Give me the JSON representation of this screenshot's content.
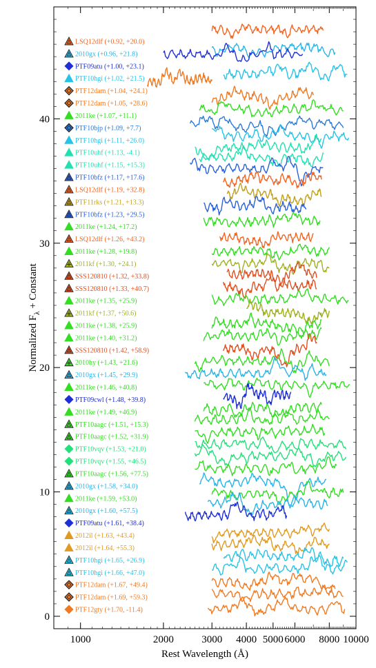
{
  "chart_data": {
    "type": "line",
    "title": "",
    "xlabel": "Rest Wavelength (Å)",
    "ylabel_main": "Normalized F",
    "ylabel_sub": "λ",
    "ylabel_rest": " + Constant",
    "xscale": "log",
    "xlim": [
      800,
      10000
    ],
    "ylim": [
      -1,
      49
    ],
    "x_ticks": [
      {
        "value": 1000,
        "label": "1000"
      },
      {
        "value": 2000,
        "label": "2000"
      },
      {
        "value": 3000,
        "label": "3000"
      },
      {
        "value": 4000,
        "label": "4000"
      },
      {
        "value": 5000,
        "label": "5000"
      },
      {
        "value": 6000,
        "label": "6000"
      },
      {
        "value": 8000,
        "label": "8000"
      },
      {
        "value": 10000,
        "label": "10000"
      }
    ],
    "y_ticks": [
      {
        "value": 0,
        "label": "0"
      },
      {
        "value": 10,
        "label": "10"
      },
      {
        "value": 20,
        "label": "20"
      },
      {
        "value": 30,
        "label": "30"
      },
      {
        "value": 40,
        "label": "40"
      }
    ],
    "series": [
      {
        "name": "LSQ12dlf (+0.92, +20.0)",
        "color": "#f26522",
        "marker": "triangle-dark",
        "offset": 47.2,
        "wmin": 3000,
        "wmax": 7600
      },
      {
        "name": "2010gx (+0.96, +21.8)",
        "color": "#27b4e6",
        "marker": "triangle-dark",
        "offset": 45.8,
        "wmin": 3000,
        "wmax": 8400
      },
      {
        "name": "PTF09atu (+1.00, +23.1)",
        "color": "#1f2fd6",
        "marker": "diamond",
        "offset": 45.2,
        "wmin": 2000,
        "wmax": 6400
      },
      {
        "name": "PTF10hgi (+1.02, +21.5)",
        "color": "#27c3e6",
        "marker": "triangle",
        "offset": 43.6,
        "wmin": 3300,
        "wmax": 9300
      },
      {
        "name": "PTF12dam (+1.04, +24.1)",
        "color": "#f07a22",
        "marker": "diamond-dark",
        "offset": 43.0,
        "wmin": 1750,
        "wmax": 3000
      },
      {
        "name": "PTF12dam (+1.05, +28.6)",
        "color": "#f07a22",
        "marker": "diamond-dark",
        "offset": 41.8,
        "wmin": 3000,
        "wmax": 7000
      },
      {
        "name": "2011ke (+1.07, +11.1)",
        "color": "#33dd22",
        "marker": "triangle",
        "offset": 40.8,
        "wmin": 2700,
        "wmax": 9000
      },
      {
        "name": "PTF10bjp (+1.09, +7.7)",
        "color": "#2a7ad8",
        "marker": "diamond-dark",
        "offset": 39.5,
        "wmin": 2500,
        "wmax": 9000
      },
      {
        "name": "PTF10hgi (+1.11, +26.0)",
        "color": "#27c3e6",
        "marker": "triangle",
        "offset": 38.6,
        "wmin": 3000,
        "wmax": 9400
      },
      {
        "name": "PTF10uhf (+1.13, -4.1)",
        "color": "#22e0b0",
        "marker": "triangle",
        "offset": 37.7,
        "wmin": 2600,
        "wmax": 7500
      },
      {
        "name": "PTF10uhf (+1.15, +15.3)",
        "color": "#22e0b0",
        "marker": "triangle",
        "offset": 36.9,
        "wmin": 2700,
        "wmax": 7600
      },
      {
        "name": "PTF10bfz (+1.17, +17.6)",
        "color": "#2a60d8",
        "marker": "triangle-dark",
        "offset": 36.0,
        "wmin": 2500,
        "wmax": 7600
      },
      {
        "name": "LSQ12dlf (+1.19, +32.8)",
        "color": "#f26522",
        "marker": "triangle-dark",
        "offset": 35.2,
        "wmin": 3300,
        "wmax": 7500
      },
      {
        "name": "PTF11rks (+1.21, +13.3)",
        "color": "#c0a020",
        "marker": "triangle-dark",
        "offset": 34.0,
        "wmin": 3400,
        "wmax": 7500
      },
      {
        "name": "PTF10bfz (+1.23, +29.5)",
        "color": "#2a60d8",
        "marker": "triangle-dark",
        "offset": 33.0,
        "wmin": 2800,
        "wmax": 6600
      },
      {
        "name": "2011ke (+1.24, +17.2)",
        "color": "#33dd22",
        "marker": "triangle",
        "offset": 31.8,
        "wmin": 2800,
        "wmax": 7400
      },
      {
        "name": "LSQ12dlf (+1.26, +43.2)",
        "color": "#f26522",
        "marker": "triangle-dark",
        "offset": 30.5,
        "wmin": 3200,
        "wmax": 7000
      },
      {
        "name": "2011ke (+1.28, +19.8)",
        "color": "#33dd22",
        "marker": "triangle",
        "offset": 29.3,
        "wmin": 3000,
        "wmax": 8000
      },
      {
        "name": "2011kf (+1.30, +24.1)",
        "color": "#a0b020",
        "marker": "triangle-plus",
        "offset": 28.4,
        "wmin": 3000,
        "wmax": 8000
      },
      {
        "name": "SSS120810 (+1.32, +33.8)",
        "color": "#e05020",
        "marker": "triangle-dark",
        "offset": 27.5,
        "wmin": 3400,
        "wmax": 7200
      },
      {
        "name": "SSS120810 (+1.33, +40.7)",
        "color": "#e05020",
        "marker": "triangle-dark",
        "offset": 26.5,
        "wmin": 3300,
        "wmax": 7200
      },
      {
        "name": "2011ke (+1.35, +25.9)",
        "color": "#33dd22",
        "marker": "triangle",
        "offset": 25.5,
        "wmin": 3000,
        "wmax": 9400
      },
      {
        "name": "2011kf (+1.37, +50.6)",
        "color": "#a0b020",
        "marker": "triangle-plus",
        "offset": 24.4,
        "wmin": 4000,
        "wmax": 8000
      },
      {
        "name": "2011ke (+1.38, +25.9)",
        "color": "#33dd22",
        "marker": "triangle",
        "offset": 23.5,
        "wmin": 3000,
        "wmax": 7500
      },
      {
        "name": "2011ke (+1.40, +31.2)",
        "color": "#33dd22",
        "marker": "triangle",
        "offset": 22.5,
        "wmin": 2800,
        "wmax": 7500
      },
      {
        "name": "SSS120810 (+1.42, +58.9)",
        "color": "#e05020",
        "marker": "triangle-dark",
        "offset": 21.5,
        "wmin": 3300,
        "wmax": 7200
      },
      {
        "name": "2010hy (+1.43, +21.6)",
        "color": "#33dd22",
        "marker": "triangle-plus",
        "offset": 20.5,
        "wmin": 2600,
        "wmax": 8000
      },
      {
        "name": "2010gx (+1.45, +29.9)",
        "color": "#27b4e6",
        "marker": "triangle-dark",
        "offset": 19.5,
        "wmin": 2400,
        "wmax": 7800
      },
      {
        "name": "2011ke (+1.46, +40.8)",
        "color": "#33dd22",
        "marker": "triangle",
        "offset": 18.6,
        "wmin": 2800,
        "wmax": 9500
      },
      {
        "name": "PTF09cwl (+1.48, +39.8)",
        "color": "#1f2fd6",
        "marker": "diamond",
        "offset": 17.8,
        "wmin": 3300,
        "wmax": 5800
      },
      {
        "name": "2011ke (+1.49, +46.9)",
        "color": "#33dd22",
        "marker": "triangle",
        "offset": 16.8,
        "wmin": 2800,
        "wmax": 7500
      },
      {
        "name": "PTF10aagc (+1.51, +15.3)",
        "color": "#33dd22",
        "marker": "triangle-dark",
        "offset": 15.8,
        "wmin": 2600,
        "wmax": 8000
      },
      {
        "name": "PTF10aagc (+1.52, +31.9)",
        "color": "#33dd22",
        "marker": "triangle-dark",
        "offset": 14.8,
        "wmin": 2600,
        "wmax": 7700
      },
      {
        "name": "PTF10vqv (+1.53, +21.0)",
        "color": "#22e07a",
        "marker": "diamond",
        "offset": 13.8,
        "wmin": 2600,
        "wmax": 9200
      },
      {
        "name": "PTF10vqv (+1.55, +46.5)",
        "color": "#22e07a",
        "marker": "diamond",
        "offset": 12.9,
        "wmin": 2600,
        "wmax": 9200
      },
      {
        "name": "PTF10aagc (+1.56, +77.5)",
        "color": "#33dd22",
        "marker": "triangle-dark",
        "offset": 11.9,
        "wmin": 2600,
        "wmax": 8500
      },
      {
        "name": "2010gx (+1.58, +34.0)",
        "color": "#27b4e6",
        "marker": "triangle-dark",
        "offset": 10.8,
        "wmin": 2700,
        "wmax": 7800
      },
      {
        "name": "2011ke (+1.59, +53.0)",
        "color": "#33dd22",
        "marker": "triangle",
        "offset": 9.9,
        "wmin": 3000,
        "wmax": 9000
      },
      {
        "name": "2010gx (+1.60, +57.5)",
        "color": "#27b4e6",
        "marker": "triangle-dark",
        "offset": 9.0,
        "wmin": 2900,
        "wmax": 7900
      },
      {
        "name": "PTF09atu (+1.61, +38.4)",
        "color": "#1f2fd6",
        "marker": "diamond",
        "offset": 8.1,
        "wmin": 2400,
        "wmax": 5600
      },
      {
        "name": "2012il (+1.63, +43.4)",
        "color": "#e09a22",
        "marker": "triangle",
        "offset": 6.7,
        "wmin": 3000,
        "wmax": 8000
      },
      {
        "name": "2012il (+1.64, +55.3)",
        "color": "#e09a22",
        "marker": "triangle",
        "offset": 5.8,
        "wmin": 3000,
        "wmax": 8000
      },
      {
        "name": "PTF10hgi (+1.65, +26.9)",
        "color": "#27c3e6",
        "marker": "triangle-dark",
        "offset": 4.8,
        "wmin": 3300,
        "wmax": 9000
      },
      {
        "name": "PTF10hgi (+1.66, +47.0)",
        "color": "#27c3e6",
        "marker": "triangle-dark",
        "offset": 3.8,
        "wmin": 3000,
        "wmax": 9300
      },
      {
        "name": "PTF12dam (+1.67, +49.4)",
        "color": "#f07a22",
        "marker": "diamond-dark",
        "offset": 2.7,
        "wmin": 3000,
        "wmax": 8400
      },
      {
        "name": "PTF12dam (+1.69, +59.3)",
        "color": "#f07a22",
        "marker": "diamond-dark",
        "offset": 1.8,
        "wmin": 3000,
        "wmax": 9000
      },
      {
        "name": "PTF12gty (+1.70, -11.4)",
        "color": "#f07a22",
        "marker": "diamond",
        "offset": 0.6,
        "wmin": 2900,
        "wmax": 9100
      }
    ]
  }
}
